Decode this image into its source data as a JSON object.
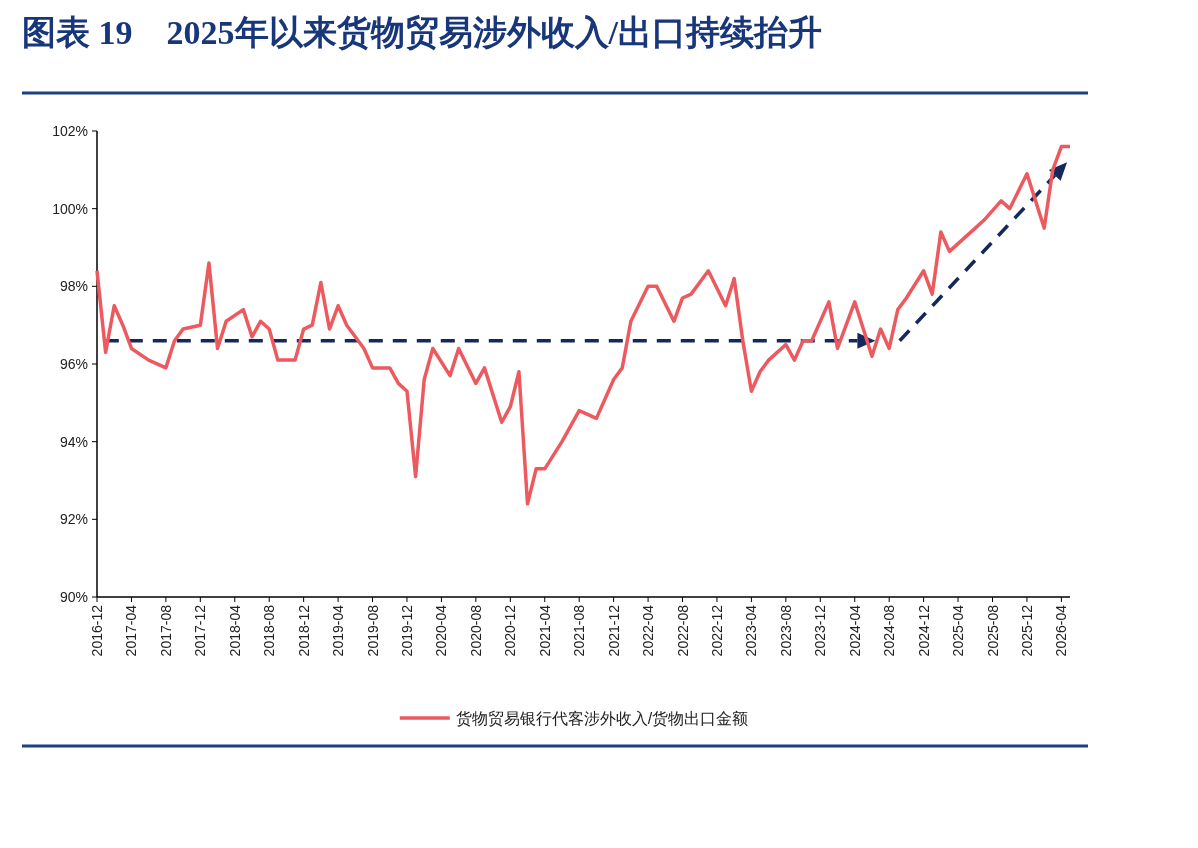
{
  "chart_data": {
    "type": "line",
    "title": "图表 19　2025年以来货物贸易涉外收入/出口持续抬升",
    "x": [
      "2016-12",
      "2017-01",
      "2017-02",
      "2017-03",
      "2017-04",
      "2017-06",
      "2017-08",
      "2017-09",
      "2017-10",
      "2017-12",
      "2018-01",
      "2018-02",
      "2018-03",
      "2018-05",
      "2018-06",
      "2018-07",
      "2018-08",
      "2018-09",
      "2018-11",
      "2018-12",
      "2019-01",
      "2019-02",
      "2019-03",
      "2019-04",
      "2019-05",
      "2019-07",
      "2019-08",
      "2019-10",
      "2019-11",
      "2019-12",
      "2020-01",
      "2020-02",
      "2020-03",
      "2020-05",
      "2020-06",
      "2020-08",
      "2020-09",
      "2020-11",
      "2020-12",
      "2021-01",
      "2021-02",
      "2021-03",
      "2021-04",
      "2021-06",
      "2021-08",
      "2021-10",
      "2021-12",
      "2022-01",
      "2022-02",
      "2022-04",
      "2022-05",
      "2022-07",
      "2022-08",
      "2022-09",
      "2022-11",
      "2023-01",
      "2023-02",
      "2023-03",
      "2023-04",
      "2023-05",
      "2023-06",
      "2023-08",
      "2023-09",
      "2023-10",
      "2023-11",
      "2024-01",
      "2024-02",
      "2024-04",
      "2024-05",
      "2024-06",
      "2024-07",
      "2024-08",
      "2024-09",
      "2024-10",
      "2024-12",
      "2025-01",
      "2025-02",
      "2025-03",
      "2025-04",
      "2025-06",
      "2025-07",
      "2025-09",
      "2025-10",
      "2025-12",
      "2026-01",
      "2026-02",
      "2026-03",
      "2026-04",
      "2026-05"
    ],
    "series": [
      {
        "name": "货物贸易银行代客涉外收入/货物出口金额",
        "color": "#ec5a60",
        "values": [
          98.4,
          96.3,
          97.5,
          97.0,
          96.4,
          96.1,
          95.9,
          96.6,
          96.9,
          97.0,
          98.6,
          96.4,
          97.1,
          97.4,
          96.7,
          97.1,
          96.9,
          96.1,
          96.1,
          96.9,
          97.0,
          98.1,
          96.9,
          97.5,
          97.0,
          96.4,
          95.9,
          95.9,
          95.5,
          95.3,
          93.1,
          95.6,
          96.4,
          95.7,
          96.4,
          95.5,
          95.9,
          94.5,
          94.9,
          95.8,
          92.4,
          93.3,
          93.3,
          94.0,
          94.8,
          94.6,
          95.6,
          95.9,
          97.1,
          98.0,
          98.0,
          97.1,
          97.7,
          97.8,
          98.4,
          97.5,
          98.2,
          96.6,
          95.3,
          95.8,
          96.1,
          96.5,
          96.1,
          96.6,
          96.6,
          97.6,
          96.4,
          97.6,
          96.9,
          96.2,
          96.9,
          96.4,
          97.4,
          97.7,
          98.4,
          97.8,
          99.4,
          98.9,
          99.1,
          99.5,
          99.7,
          100.2,
          100.0,
          100.9,
          100.2,
          99.5,
          101.0,
          101.6,
          101.6
        ]
      }
    ],
    "xlim": [
      "2016-12",
      "2026-05"
    ],
    "xticks": [
      {
        "value": "2016-12",
        "label": "2016-12"
      },
      {
        "value": "2017-04",
        "label": "2017-04"
      },
      {
        "value": "2017-08",
        "label": "2017-08"
      },
      {
        "value": "2017-12",
        "label": "2017-12"
      },
      {
        "value": "2018-04",
        "label": "2018-04"
      },
      {
        "value": "2018-08",
        "label": "2018-08"
      },
      {
        "value": "2018-12",
        "label": "2018-12"
      },
      {
        "value": "2019-04",
        "label": "2019-04"
      },
      {
        "value": "2019-08",
        "label": "2019-08"
      },
      {
        "value": "2019-12",
        "label": "2019-12"
      },
      {
        "value": "2020-04",
        "label": "2020-04"
      },
      {
        "value": "2020-08",
        "label": "2020-08"
      },
      {
        "value": "2020-12",
        "label": "2020-12"
      },
      {
        "value": "2021-04",
        "label": "2021-04"
      },
      {
        "value": "2021-08",
        "label": "2021-08"
      },
      {
        "value": "2021-12",
        "label": "2021-12"
      },
      {
        "value": "2022-04",
        "label": "2022-04"
      },
      {
        "value": "2022-08",
        "label": "2022-08"
      },
      {
        "value": "2022-12",
        "label": "2022-12"
      },
      {
        "value": "2023-04",
        "label": "2023-04"
      },
      {
        "value": "2023-08",
        "label": "2023-08"
      },
      {
        "value": "2023-12",
        "label": "2023-12"
      },
      {
        "value": "2024-04",
        "label": "2024-04"
      },
      {
        "value": "2024-08",
        "label": "2024-08"
      },
      {
        "value": "2024-12",
        "label": "2024-12"
      },
      {
        "value": "2025-04",
        "label": "2025-04"
      },
      {
        "value": "2025-08",
        "label": "2025-08"
      },
      {
        "value": "2025-12",
        "label": "2025-12"
      },
      {
        "value": "2026-04",
        "label": "2026-04"
      }
    ],
    "ylim": [
      90,
      102
    ],
    "yticks": [
      {
        "value": 90,
        "label": "90%"
      },
      {
        "value": 92,
        "label": "92%"
      },
      {
        "value": 94,
        "label": "94%"
      },
      {
        "value": 96,
        "label": "96%"
      },
      {
        "value": 98,
        "label": "98%"
      },
      {
        "value": 100,
        "label": "100%"
      },
      {
        "value": 102,
        "label": "102%"
      }
    ],
    "legend": "bottom"
  }
}
